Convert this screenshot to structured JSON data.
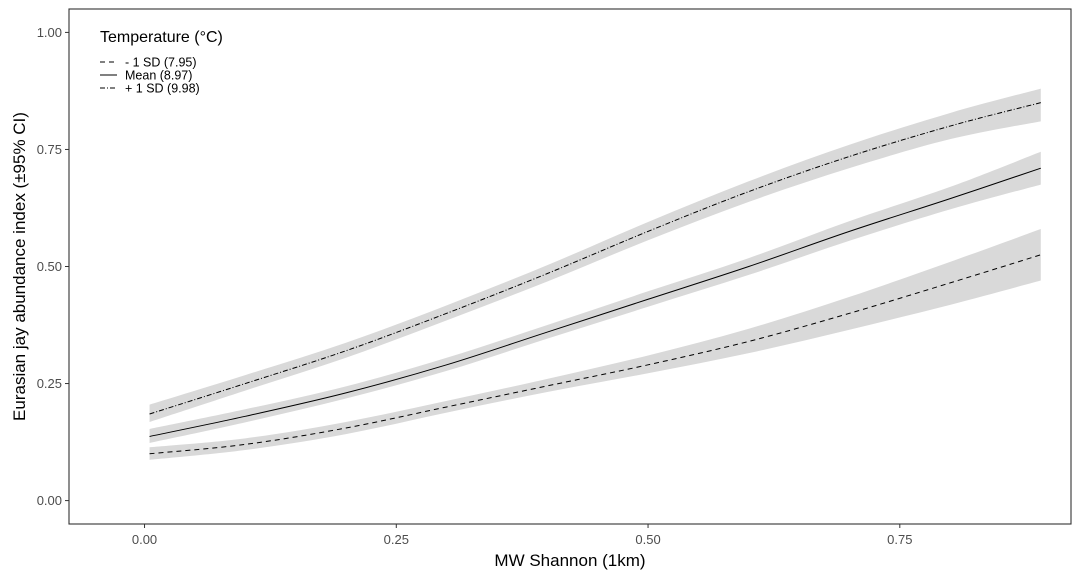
{
  "chart_data": {
    "type": "line",
    "xlabel": "MW Shannon (1km)",
    "ylabel": "Eurasian jay abundance index (±95% CI)",
    "xlim": [
      -0.075,
      0.92
    ],
    "ylim": [
      -0.05,
      1.05
    ],
    "x_ticks": [
      0.0,
      0.25,
      0.5,
      0.75
    ],
    "x_tick_labels": [
      "0.00",
      "0.25",
      "0.50",
      "0.75"
    ],
    "y_ticks": [
      0.0,
      0.25,
      0.5,
      0.75,
      1.0
    ],
    "y_tick_labels": [
      "0.00",
      "0.25",
      "0.50",
      "0.75",
      "1.00"
    ],
    "grid": false,
    "legend": {
      "title": "Temperature (°C)",
      "placement": "top-left inside",
      "entries": [
        {
          "label": "- 1 SD (7.95)",
          "dash": "dashed"
        },
        {
          "label": "Mean (8.97)",
          "dash": "solid"
        },
        {
          "label": "+ 1 SD (9.98)",
          "dash": "dotdash"
        }
      ]
    },
    "colors": {
      "line": "#000000",
      "ribbon": "#d9d9d9",
      "axis": "#333333"
    },
    "series": [
      {
        "name": "- 1 SD (7.95)",
        "dash": "dashed",
        "x": [
          0.005,
          0.1,
          0.2,
          0.3,
          0.4,
          0.5,
          0.6,
          0.7,
          0.8,
          0.89
        ],
        "y": [
          0.1,
          0.12,
          0.155,
          0.2,
          0.245,
          0.29,
          0.34,
          0.4,
          0.465,
          0.525
        ],
        "lower": [
          0.087,
          0.108,
          0.142,
          0.188,
          0.232,
          0.272,
          0.315,
          0.365,
          0.418,
          0.47
        ],
        "upper": [
          0.114,
          0.133,
          0.168,
          0.213,
          0.26,
          0.31,
          0.367,
          0.435,
          0.51,
          0.58
        ]
      },
      {
        "name": "Mean (8.97)",
        "dash": "solid",
        "x": [
          0.005,
          0.1,
          0.2,
          0.3,
          0.4,
          0.5,
          0.6,
          0.7,
          0.8,
          0.89
        ],
        "y": [
          0.137,
          0.18,
          0.23,
          0.29,
          0.36,
          0.43,
          0.5,
          0.575,
          0.645,
          0.71
        ],
        "lower": [
          0.123,
          0.167,
          0.218,
          0.277,
          0.346,
          0.414,
          0.482,
          0.555,
          0.622,
          0.675
        ],
        "upper": [
          0.153,
          0.195,
          0.244,
          0.305,
          0.375,
          0.447,
          0.518,
          0.597,
          0.67,
          0.745
        ]
      },
      {
        "name": "+ 1 SD (9.98)",
        "dash": "dotdash",
        "x": [
          0.005,
          0.1,
          0.2,
          0.3,
          0.4,
          0.5,
          0.6,
          0.7,
          0.8,
          0.89
        ],
        "y": [
          0.185,
          0.25,
          0.32,
          0.4,
          0.485,
          0.575,
          0.66,
          0.735,
          0.8,
          0.85
        ],
        "lower": [
          0.168,
          0.235,
          0.305,
          0.385,
          0.468,
          0.556,
          0.638,
          0.71,
          0.772,
          0.81
        ],
        "upper": [
          0.205,
          0.268,
          0.337,
          0.417,
          0.503,
          0.595,
          0.682,
          0.76,
          0.828,
          0.88
        ]
      }
    ]
  }
}
